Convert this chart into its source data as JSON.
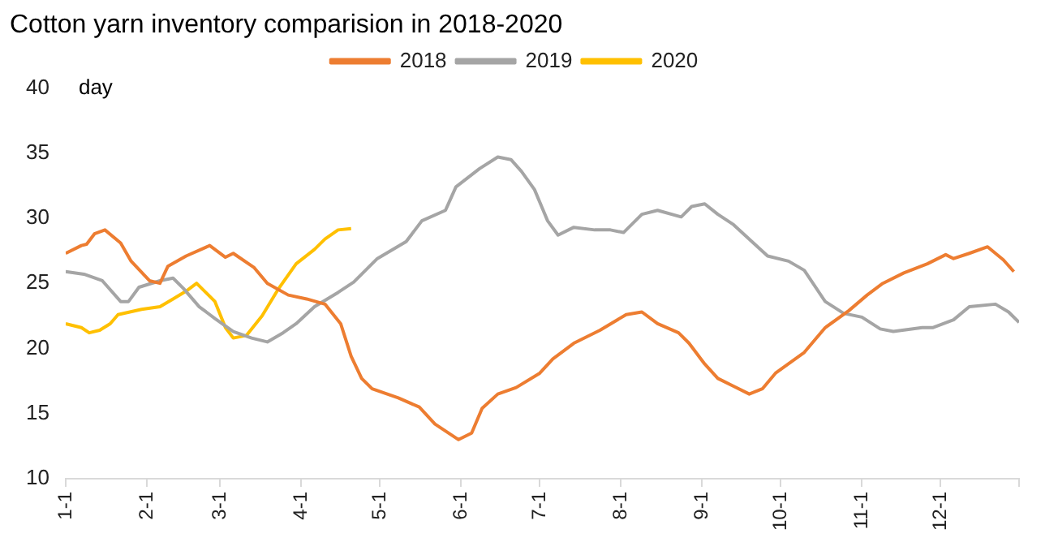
{
  "chart_data": {
    "type": "line",
    "title": "Cotton yarn inventory comparision in 2018-2020",
    "ylabel": "day",
    "legend": "top",
    "grid": false,
    "marker": "none",
    "line_style": "solid",
    "xlim": [
      "--01-01",
      "--12-31"
    ],
    "xticks": [
      {
        "value": "--01-01",
        "label": "1-1"
      },
      {
        "value": "--02-01",
        "label": "2-1"
      },
      {
        "value": "--03-01",
        "label": "3-1"
      },
      {
        "value": "--04-01",
        "label": "4-1"
      },
      {
        "value": "--05-01",
        "label": "5-1"
      },
      {
        "value": "--06-01",
        "label": "6-1"
      },
      {
        "value": "--07-01",
        "label": "7-1"
      },
      {
        "value": "--08-01",
        "label": "8-1"
      },
      {
        "value": "--09-01",
        "label": "9-1"
      },
      {
        "value": "--10-01",
        "label": "10-1"
      },
      {
        "value": "--11-01",
        "label": "11-1"
      },
      {
        "value": "--12-01",
        "label": "12-1"
      },
      {
        "value": "--12-31",
        "label": null
      }
    ],
    "ylim": [
      10,
      40
    ],
    "yticks": [
      10,
      15,
      20,
      25,
      30,
      35,
      40
    ],
    "series": [
      {
        "name": "2018",
        "color": "#ed7d31",
        "x": [
          "--01-01",
          "--01-07",
          "--01-09",
          "--01-12",
          "--01-16",
          "--01-22",
          "--01-26",
          "--02-02",
          "--02-06",
          "--02-09",
          "--02-16",
          "--02-25",
          "--03-03",
          "--03-06",
          "--03-14",
          "--03-19",
          "--03-27",
          "--04-03",
          "--04-10",
          "--04-16",
          "--04-20",
          "--04-24",
          "--04-28",
          "--05-08",
          "--05-16",
          "--05-22",
          "--05-31",
          "--06-05",
          "--06-09",
          "--06-15",
          "--06-22",
          "--07-01",
          "--07-06",
          "--07-14",
          "--07-24",
          "--08-03",
          "--08-09",
          "--08-15",
          "--08-23",
          "--08-27",
          "--09-02",
          "--09-07",
          "--09-13",
          "--09-19",
          "--09-24",
          "--09-29",
          "--10-10",
          "--10-18",
          "--10-27",
          "--11-03",
          "--11-09",
          "--11-17",
          "--11-26",
          "--12-03",
          "--12-06",
          "--12-12",
          "--12-19",
          "--12-25",
          "--12-29"
        ],
        "values": [
          27.3,
          27.9,
          28.0,
          28.8,
          29.1,
          28.1,
          26.7,
          25.2,
          25.0,
          26.3,
          27.1,
          27.9,
          27.0,
          27.3,
          26.2,
          25.0,
          24.1,
          23.8,
          23.4,
          21.9,
          19.4,
          17.7,
          16.9,
          16.2,
          15.5,
          14.2,
          13.0,
          13.5,
          15.4,
          16.5,
          17.0,
          18.1,
          19.2,
          20.4,
          21.4,
          22.6,
          22.8,
          21.9,
          21.2,
          20.4,
          18.8,
          17.7,
          17.1,
          16.5,
          16.9,
          18.1,
          19.7,
          21.6,
          22.9,
          24.1,
          25.0,
          25.8,
          26.5,
          27.2,
          26.9,
          27.3,
          27.8,
          26.8,
          25.9
        ]
      },
      {
        "name": "2019",
        "color": "#a5a5a5",
        "x": [
          "--01-01",
          "--01-08",
          "--01-15",
          "--01-22",
          "--01-25",
          "--01-29",
          "--02-06",
          "--02-11",
          "--02-15",
          "--02-21",
          "--02-27",
          "--03-06",
          "--03-13",
          "--03-19",
          "--03-25",
          "--03-30",
          "--04-06",
          "--04-15",
          "--04-21",
          "--04-30",
          "--05-11",
          "--05-17",
          "--05-26",
          "--05-30",
          "--06-08",
          "--06-15",
          "--06-20",
          "--06-24",
          "--06-29",
          "--07-04",
          "--07-08",
          "--07-14",
          "--07-22",
          "--07-28",
          "--08-02",
          "--08-09",
          "--08-15",
          "--08-24",
          "--08-28",
          "--09-02",
          "--09-07",
          "--09-13",
          "--09-20",
          "--09-26",
          "--10-04",
          "--10-10",
          "--10-18",
          "--10-25",
          "--11-01",
          "--11-08",
          "--11-13",
          "--11-24",
          "--11-28",
          "--12-06",
          "--12-12",
          "--12-22",
          "--12-27",
          "--12-31"
        ],
        "values": [
          25.9,
          25.7,
          25.2,
          23.6,
          23.6,
          24.7,
          25.2,
          25.4,
          24.6,
          23.2,
          22.3,
          21.3,
          20.8,
          20.5,
          21.2,
          21.9,
          23.2,
          24.3,
          25.1,
          26.9,
          28.2,
          29.8,
          30.6,
          32.4,
          33.8,
          34.7,
          34.5,
          33.6,
          32.2,
          29.8,
          28.7,
          29.3,
          29.1,
          29.1,
          28.9,
          30.3,
          30.6,
          30.1,
          30.9,
          31.1,
          30.3,
          29.5,
          28.2,
          27.1,
          26.7,
          26.0,
          23.6,
          22.7,
          22.4,
          21.5,
          21.3,
          21.6,
          21.6,
          22.2,
          23.2,
          23.4,
          22.8,
          22.0
        ]
      },
      {
        "name": "2020",
        "color": "#ffc000",
        "x": [
          "--01-01",
          "--01-07",
          "--01-10",
          "--01-14",
          "--01-18",
          "--01-21",
          "--01-30",
          "--02-06",
          "--02-11",
          "--02-16",
          "--02-20",
          "--02-27",
          "--03-03",
          "--03-06",
          "--03-11",
          "--03-17",
          "--03-23",
          "--03-30",
          "--04-06",
          "--04-10",
          "--04-15",
          "--04-20"
        ],
        "values": [
          21.9,
          21.6,
          21.2,
          21.4,
          21.9,
          22.6,
          23.0,
          23.2,
          23.8,
          24.4,
          25.0,
          23.6,
          21.6,
          20.8,
          21.0,
          22.5,
          24.5,
          26.5,
          27.6,
          28.4,
          29.1,
          29.2
        ]
      }
    ]
  }
}
